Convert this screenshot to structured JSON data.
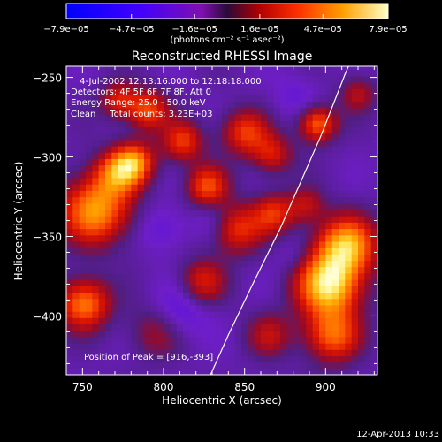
{
  "chart_data": {
    "type": "heatmap",
    "title": "Reconstructed RHESSI Image",
    "xlabel": "Heliocentric X (arcsec)",
    "ylabel": "Heliocentric Y (arcsec)",
    "xlim": [
      740,
      932
    ],
    "ylim": [
      -437,
      -243
    ],
    "x_ticks": [
      750,
      800,
      850,
      900
    ],
    "x_tick_labels": [
      "750",
      "800",
      "850",
      "900"
    ],
    "y_ticks": [
      -250,
      -300,
      -350,
      -400
    ],
    "y_tick_labels": [
      "−250",
      "−300",
      "−350",
      "−400"
    ],
    "colorbar": {
      "min": -7.9e-05,
      "max": 7.9e-05,
      "tick_values": [
        -7.9e-05,
        -4.7e-05,
        -1.6e-05,
        1.6e-05,
        4.7e-05,
        7.9e-05
      ],
      "tick_labels": [
        "−7.9e−05",
        "−4.7e−05",
        "−1.6e−05",
        "1.6e−05",
        "4.7e−05",
        "7.9e−05"
      ],
      "units_label": "(photons cm⁻² s⁻¹ asec⁻²)"
    },
    "annotations": [
      "4-Jul-2002 12:13:16.000 to 12:18:18.000",
      "Detectors: 4F 5F 6F 7F 8F, Att 0",
      "Energy Range: 25.0 - 50.0 keV",
      "Clean     Total counts: 3.23E+03"
    ],
    "peak_label": "Position of Peak = [916,-393]",
    "peak": [
      916,
      -393
    ],
    "limb_curve": [
      [
        829,
        -437
      ],
      [
        840,
        -412
      ],
      [
        855,
        -380
      ],
      [
        872,
        -345
      ],
      [
        885,
        -315
      ],
      [
        897,
        -287
      ],
      [
        912,
        -248
      ],
      [
        915,
        -241
      ]
    ],
    "sources": [
      {
        "x": 902,
        "y": -380,
        "amp": 1.0,
        "s": 14
      },
      {
        "x": 913,
        "y": -355,
        "amp": 0.85,
        "s": 13
      },
      {
        "x": 904,
        "y": -412,
        "amp": 0.65,
        "s": 12
      },
      {
        "x": 758,
        "y": -333,
        "amp": 0.82,
        "s": 15
      },
      {
        "x": 751,
        "y": -392,
        "amp": 0.75,
        "s": 11
      },
      {
        "x": 771,
        "y": -310,
        "amp": 0.55,
        "s": 10
      },
      {
        "x": 782,
        "y": -303,
        "amp": 0.7,
        "s": 9
      },
      {
        "x": 790,
        "y": -270,
        "amp": 0.6,
        "s": 9
      },
      {
        "x": 812,
        "y": -290,
        "amp": 0.55,
        "s": 9
      },
      {
        "x": 827,
        "y": -318,
        "amp": 0.6,
        "s": 9
      },
      {
        "x": 850,
        "y": -284,
        "amp": 0.55,
        "s": 10
      },
      {
        "x": 867,
        "y": -298,
        "amp": 0.45,
        "s": 9
      },
      {
        "x": 895,
        "y": -279,
        "amp": 0.7,
        "s": 8
      },
      {
        "x": 845,
        "y": -345,
        "amp": 0.55,
        "s": 11
      },
      {
        "x": 868,
        "y": -335,
        "amp": 0.5,
        "s": 9
      },
      {
        "x": 824,
        "y": -378,
        "amp": 0.45,
        "s": 10
      },
      {
        "x": 772,
        "y": -264,
        "amp": 0.45,
        "s": 8
      },
      {
        "x": 920,
        "y": -260,
        "amp": 0.35,
        "s": 8
      },
      {
        "x": 888,
        "y": -330,
        "amp": 0.35,
        "s": 8
      },
      {
        "x": 865,
        "y": -412,
        "amp": 0.35,
        "s": 10
      },
      {
        "x": 795,
        "y": -410,
        "amp": 0.3,
        "s": 12
      },
      {
        "x": 800,
        "y": -345,
        "amp": -0.2,
        "s": 10
      },
      {
        "x": 810,
        "y": -398,
        "amp": -0.25,
        "s": 12
      },
      {
        "x": 830,
        "y": -340,
        "amp": -0.15,
        "s": 9
      },
      {
        "x": 882,
        "y": -262,
        "amp": -0.15,
        "s": 10
      },
      {
        "x": 880,
        "y": -362,
        "amp": -0.12,
        "s": 8
      }
    ]
  },
  "footer_date": "12-Apr-2013 10:33"
}
